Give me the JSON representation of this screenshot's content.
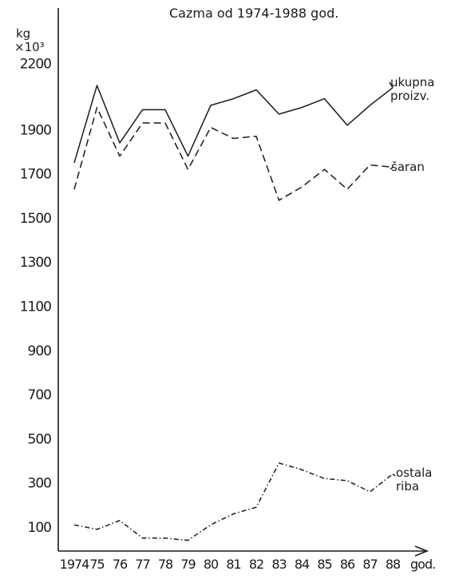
{
  "chart_data": {
    "type": "line",
    "title": "Cazma   od  1974-1988  god.",
    "ylabel": "kg",
    "ylabel_multiplier": "×10³",
    "xlabel": "god.",
    "ylim": [
      0,
      2300
    ],
    "yticks": [
      "2200",
      "1900",
      "1700",
      "1500",
      "1300",
      "1100",
      "900",
      "700",
      "500",
      "300",
      "100"
    ],
    "ytick_values": [
      2200,
      1900,
      1700,
      1500,
      1300,
      1100,
      900,
      700,
      500,
      300,
      100
    ],
    "x": [
      "1974",
      "75",
      "76",
      "77",
      "78",
      "79",
      "80",
      "81",
      "82",
      "83",
      "84",
      "85",
      "86",
      "87",
      "88"
    ],
    "grid": false,
    "series": [
      {
        "name": "ukupna proizv.",
        "label_lines": [
          "ukupna",
          "proizv."
        ],
        "style": "solid",
        "values": [
          1750,
          2100,
          1840,
          1990,
          1990,
          1780,
          2010,
          2040,
          2080,
          1970,
          2000,
          2040,
          1920,
          2010,
          2090
        ]
      },
      {
        "name": "šaran",
        "label_lines": [
          "šaran"
        ],
        "style": "dashed",
        "values": [
          1630,
          2000,
          1780,
          1930,
          1930,
          1720,
          1910,
          1860,
          1870,
          1580,
          1640,
          1720,
          1630,
          1740,
          1730
        ]
      },
      {
        "name": "ostala riba",
        "label_lines": [
          "ostala",
          "riba"
        ],
        "style": "dashdot",
        "values": [
          110,
          90,
          130,
          50,
          50,
          40,
          110,
          160,
          190,
          390,
          360,
          320,
          310,
          260,
          340
        ]
      }
    ]
  }
}
